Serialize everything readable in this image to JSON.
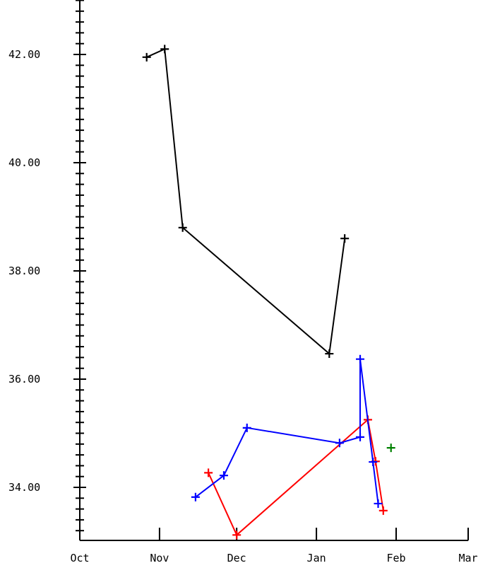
{
  "chart_data": {
    "type": "line",
    "title": "",
    "xlabel": "",
    "ylabel": "",
    "x_axis": {
      "ticks": [
        {
          "label": "Oct",
          "date": "Oct 1"
        },
        {
          "label": "Nov",
          "date": "Nov 1"
        },
        {
          "label": "Dec",
          "date": "Dec 1"
        },
        {
          "label": "Jan",
          "date": "Jan 1"
        },
        {
          "label": "Feb",
          "date": "Feb 1"
        },
        {
          "label": "Mar",
          "date": "Mar 1"
        }
      ]
    },
    "y_axis": {
      "ylim": [
        33.0,
        43.0
      ],
      "ticks": [
        {
          "label": "34.00",
          "value": 34.0
        },
        {
          "label": "36.00",
          "value": 36.0
        },
        {
          "label": "38.00",
          "value": 38.0
        },
        {
          "label": "40.00",
          "value": 40.0
        },
        {
          "label": "42.00",
          "value": 42.0
        }
      ],
      "minor_step": 0.2
    },
    "grid": false,
    "series": [
      {
        "color": "#000000",
        "line": true,
        "points": [
          {
            "x": "Oct 27",
            "y": 41.95
          },
          {
            "x": "Nov 3",
            "y": 42.1
          },
          {
            "x": "Nov 10",
            "y": 38.8
          },
          {
            "x": "Jan 6",
            "y": 36.47
          },
          {
            "x": "Jan 12",
            "y": 38.6
          }
        ]
      },
      {
        "color": "#ff0000",
        "line": true,
        "points": [
          {
            "x": "Nov 20",
            "y": 34.27
          },
          {
            "x": "Dec 1",
            "y": 33.12
          },
          {
            "x": "Jan 21",
            "y": 35.25
          },
          {
            "x": "Jan 24",
            "y": 34.48
          },
          {
            "x": "Jan 27",
            "y": 33.57
          }
        ]
      },
      {
        "color": "#0000ff",
        "line": true,
        "points": [
          {
            "x": "Nov 15",
            "y": 33.82
          },
          {
            "x": "Nov 26",
            "y": 34.22
          },
          {
            "x": "Dec 5",
            "y": 35.1
          },
          {
            "x": "Jan 10",
            "y": 34.82
          },
          {
            "x": "Jan 18",
            "y": 34.93
          },
          {
            "x": "Jan 18",
            "y": 36.37
          },
          {
            "x": "Jan 23",
            "y": 34.47
          },
          {
            "x": "Jan 25",
            "y": 33.7
          }
        ]
      },
      {
        "color": "#008000",
        "line": false,
        "points": [
          {
            "x": "Jan 30",
            "y": 34.73
          }
        ]
      }
    ]
  }
}
